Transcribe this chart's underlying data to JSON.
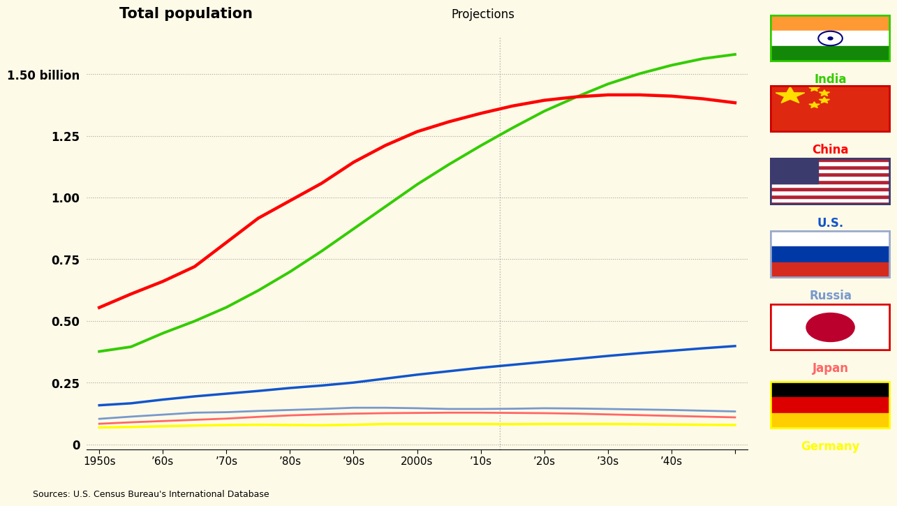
{
  "title": "Total population",
  "projections_label": "Projections",
  "source_text": "Sources: U.S. Census Bureau's International Database",
  "bg_color": "#FEFAE8",
  "years": [
    1950,
    1955,
    1960,
    1965,
    1970,
    1975,
    1980,
    1985,
    1990,
    1995,
    2000,
    2005,
    2010,
    2015,
    2020,
    2025,
    2030,
    2035,
    2040,
    2045,
    2050
  ],
  "india": [
    0.376,
    0.395,
    0.45,
    0.499,
    0.555,
    0.623,
    0.699,
    0.783,
    0.873,
    0.963,
    1.053,
    1.134,
    1.21,
    1.282,
    1.35,
    1.407,
    1.46,
    1.502,
    1.536,
    1.563,
    1.58
  ],
  "china": [
    0.554,
    0.609,
    0.66,
    0.72,
    0.818,
    0.916,
    0.987,
    1.058,
    1.143,
    1.211,
    1.267,
    1.307,
    1.341,
    1.371,
    1.394,
    1.408,
    1.416,
    1.416,
    1.411,
    1.4,
    1.384
  ],
  "us": [
    0.158,
    0.166,
    0.181,
    0.194,
    0.205,
    0.216,
    0.228,
    0.238,
    0.25,
    0.266,
    0.282,
    0.296,
    0.31,
    0.322,
    0.334,
    0.346,
    0.358,
    0.369,
    0.379,
    0.389,
    0.398
  ],
  "russia": [
    0.103,
    0.112,
    0.12,
    0.128,
    0.13,
    0.135,
    0.139,
    0.143,
    0.148,
    0.148,
    0.146,
    0.143,
    0.143,
    0.144,
    0.146,
    0.145,
    0.143,
    0.141,
    0.139,
    0.136,
    0.133
  ],
  "japan": [
    0.083,
    0.089,
    0.094,
    0.099,
    0.104,
    0.111,
    0.117,
    0.121,
    0.124,
    0.126,
    0.127,
    0.128,
    0.128,
    0.127,
    0.126,
    0.124,
    0.121,
    0.118,
    0.115,
    0.112,
    0.109
  ],
  "germany": [
    0.068,
    0.07,
    0.073,
    0.076,
    0.078,
    0.079,
    0.078,
    0.077,
    0.079,
    0.082,
    0.082,
    0.082,
    0.082,
    0.081,
    0.082,
    0.082,
    0.082,
    0.081,
    0.08,
    0.079,
    0.078
  ],
  "india_color": "#33CC00",
  "china_color": "#FF0000",
  "us_color": "#1155CC",
  "russia_color": "#7799CC",
  "japan_color": "#FF6666",
  "germany_color": "#FFFF00",
  "projection_year": 2013,
  "yticks": [
    0,
    0.25,
    0.5,
    0.75,
    1.0,
    1.25,
    1.5
  ],
  "ytick_labels": [
    "0",
    "0.25",
    "0.50",
    "0.75",
    "1.00",
    "1.25",
    "1.50 billion"
  ],
  "xtick_years": [
    1950,
    1960,
    1970,
    1980,
    1990,
    2000,
    2010,
    2020,
    2030,
    2040,
    2050
  ],
  "xtick_labels": [
    "1950s",
    "’60s",
    "’70s",
    "’80s",
    "’90s",
    "2000s",
    "’10s",
    "’20s",
    "’30s",
    "’40s",
    ""
  ]
}
